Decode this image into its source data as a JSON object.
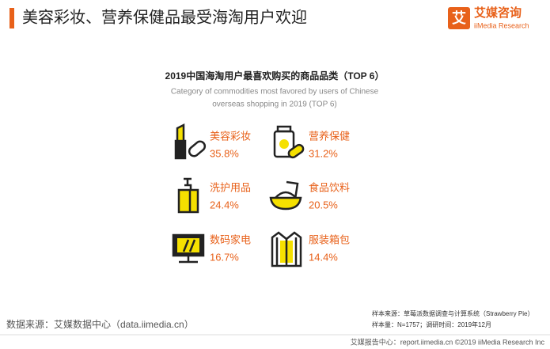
{
  "header": {
    "title": "美容彩妆、营养保健品最受海淘用户欢迎",
    "logo_cn": "艾媒咨询",
    "logo_mark": "艾",
    "logo_en": "iiMedia Research"
  },
  "infographic": {
    "title": "2019中国海淘用户最喜欢购买的商品品类（TOP 6）",
    "subtitle_lines": [
      "Category of commodities most favored by users of Chinese",
      "overseas shopping in 2019 (TOP 6)"
    ],
    "items": [
      {
        "label": "美容彩妆",
        "value": "35.8%"
      },
      {
        "label": "营养保健",
        "value": "31.2%"
      },
      {
        "label": "洗护用品",
        "value": "24.4%"
      },
      {
        "label": "食品饮料",
        "value": "20.5%"
      },
      {
        "label": "数码家电",
        "value": "16.7%"
      },
      {
        "label": "服装箱包",
        "value": "14.4%"
      }
    ]
  },
  "footer": {
    "source": "数据来源：艾媒数据中心（data.iimedia.cn）",
    "sample_source": "样本来源：草莓派数据调查与计算系统（Strawberry Pie）",
    "sample_size": "样本量：N=1757；调研时间：2019年12月",
    "copyright": "艾媒报告中心：report.iimedia.cn  ©2019  iiMedia Research  Inc"
  }
}
